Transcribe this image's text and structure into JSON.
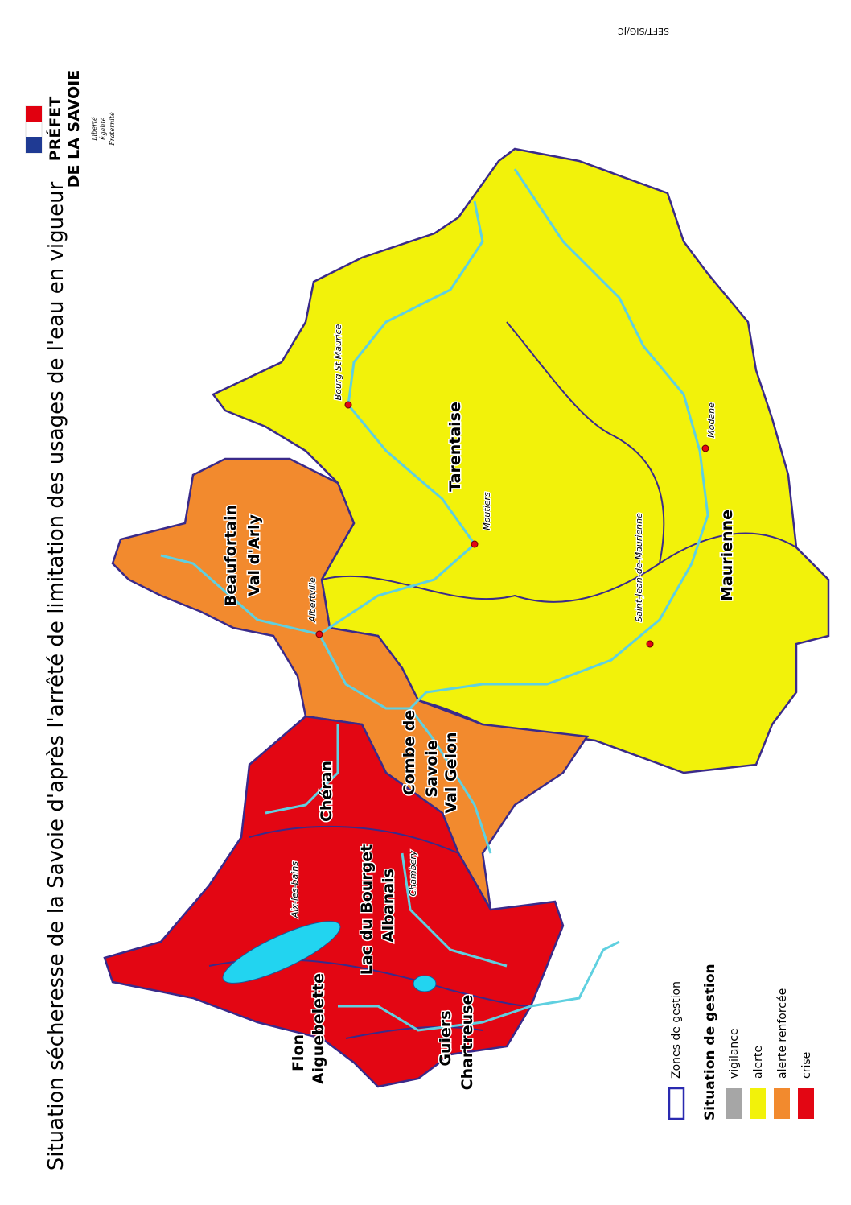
{
  "title": "Situation sécheresse de la Savoie d'après l'arrêté de limitation des usages de l'eau en vigueur",
  "reference": "SEFT/SIG/JC",
  "logo": {
    "line1": "PRÉFET",
    "line2": "DE LA SAVOIE",
    "motto": [
      "Liberté",
      "Égalité",
      "Fraternité"
    ]
  },
  "zones": [
    [
      "Beaufortain",
      "Val d'Arly"
    ],
    [
      "Tarentaise"
    ],
    [
      "Maurienne"
    ],
    [
      "Combe de",
      "Savoie",
      "Val Gelon"
    ],
    [
      "Chéran"
    ],
    [
      "Lac du Bourget",
      "Albanais"
    ],
    [
      "Flon",
      "Aiguebelette"
    ],
    [
      "Guiers",
      "Chartreuse"
    ]
  ],
  "cities": [
    "Bourg St Maurice",
    "Moutiers",
    "Albertville",
    "Saint-Jean-de-Maurienne",
    "Modane",
    "Chambery",
    "Aix-les-bains"
  ],
  "legend": {
    "zones_label": "Zones de gestion",
    "title": "Situation de gestion",
    "items": [
      {
        "label": "vigilance",
        "color": "#a6a6a6"
      },
      {
        "label": "alerte",
        "color": "#f2f20a"
      },
      {
        "label": "alerte renforcée",
        "color": "#f28a2e"
      },
      {
        "label": "crise",
        "color": "#e30613"
      }
    ]
  }
}
